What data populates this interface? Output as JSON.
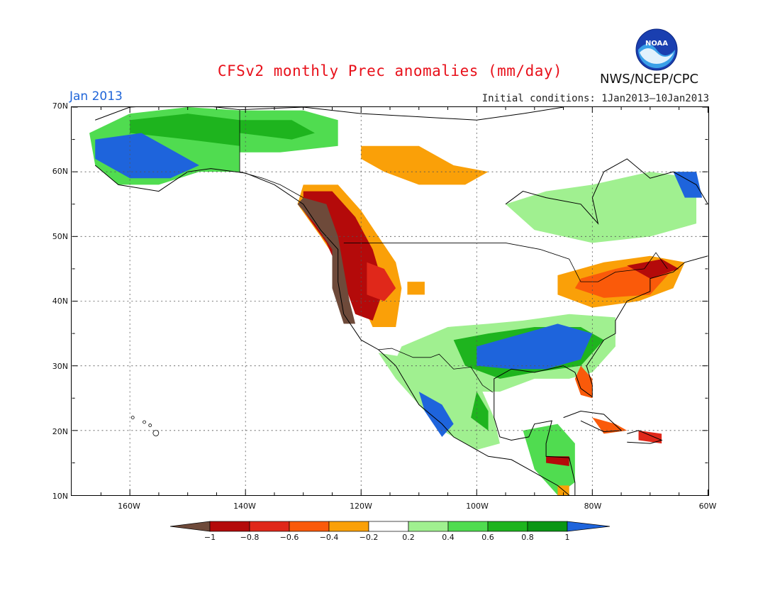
{
  "title": "CFSv2 monthly Prec anomalies (mm/day)",
  "period": "Jan 2013",
  "initial_conditions": "Initial conditions: 1Jan2013–10Jan2013",
  "agency": "NWS/NCEP/CPC",
  "logo_text": "NOAA",
  "map": {
    "projection": "cylindrical",
    "lon_range": [
      -170,
      -60
    ],
    "lat_range": [
      10,
      70
    ],
    "grid": true,
    "lat_labels": [
      "70N",
      "60N",
      "50N",
      "40N",
      "30N",
      "20N",
      "10N"
    ],
    "lon_labels": [
      "160W",
      "140W",
      "120W",
      "100W",
      "80W",
      "60W"
    ]
  },
  "colorbar": {
    "labels": [
      "−1",
      "−0.8",
      "−0.6",
      "−0.4",
      "−0.2",
      "0.2",
      "0.4",
      "0.6",
      "0.8",
      "1"
    ],
    "colors": [
      "#6e4a3a",
      "#b40a0a",
      "#e0281a",
      "#fa5a0a",
      "#faa008",
      "#ffffff",
      "#a0f090",
      "#50dc50",
      "#1eb41e",
      "#0a9614",
      "#1e64dc"
    ]
  },
  "regions": [
    {
      "name": "Alaska wet",
      "category": "0.4 to 0.6",
      "lon": [
        -165,
        -140
      ],
      "lat": [
        60,
        70
      ]
    },
    {
      "name": "SW Alaska strongly wet",
      "category": "> 1",
      "lon": [
        -163,
        -150
      ],
      "lat": [
        58,
        64
      ]
    },
    {
      "name": "Northern Canada dry",
      "category": "-0.4 to -0.2",
      "lon": [
        -118,
        -98
      ],
      "lat": [
        58,
        64
      ]
    },
    {
      "name": "Pacific Northwest very dry",
      "category": "< -1",
      "lon": [
        -125,
        -120
      ],
      "lat": [
        36,
        56
      ]
    },
    {
      "name": "Interior West dry",
      "category": "-0.8 to -0.6",
      "lon": [
        -120,
        -112
      ],
      "lat": [
        37,
        52
      ]
    },
    {
      "name": "Southeast US very wet",
      "category": "> 1",
      "lon": [
        -100,
        -80
      ],
      "lat": [
        29,
        37
      ]
    },
    {
      "name": "Mexico Gulf coast wet",
      "category": "0.6 to 0.8",
      "lon": [
        -108,
        -96
      ],
      "lat": [
        18,
        32
      ]
    },
    {
      "name": "Northeast US dry",
      "category": "-0.6 to -0.4",
      "lon": [
        -84,
        -66
      ],
      "lat": [
        39,
        46
      ]
    },
    {
      "name": "Eastern Canada wet",
      "category": "0.2 to 0.4",
      "lon": [
        -90,
        -62
      ],
      "lat": [
        48,
        58
      ]
    },
    {
      "name": "Florida dry",
      "category": "-0.6 to -0.4",
      "lon": [
        -82,
        -80
      ],
      "lat": [
        25,
        29
      ]
    },
    {
      "name": "Central America mixed",
      "category": "mixed",
      "lon": [
        -92,
        -82
      ],
      "lat": [
        10,
        20
      ]
    }
  ]
}
